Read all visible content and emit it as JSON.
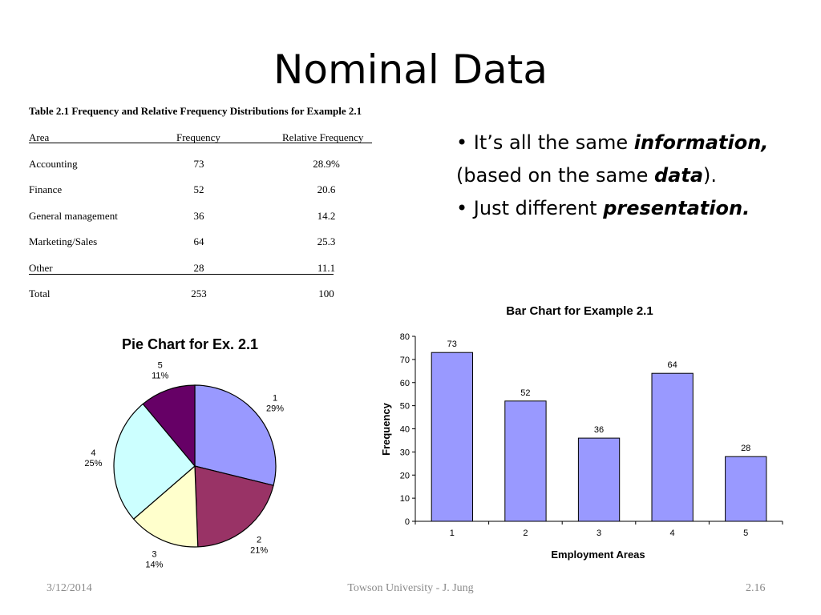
{
  "slide": {
    "title": "Nominal Data",
    "footer": {
      "date": "3/12/2014",
      "center": "Towson University - J. Jung",
      "page": "2.16"
    }
  },
  "table": {
    "caption": "Table 2.1 Frequency and Relative Frequency Distributions for Example 2.1",
    "headers": [
      "Area",
      "Frequency",
      "Relative Frequency"
    ],
    "rows": [
      [
        "Accounting",
        "73",
        "28.9%"
      ],
      [
        "Finance",
        "52",
        "20.6"
      ],
      [
        "General management",
        "36",
        "14.2"
      ],
      [
        "Marketing/Sales",
        "64",
        "25.3"
      ],
      [
        "Other",
        "28",
        "11.1"
      ],
      [
        "Total",
        "253",
        "100"
      ]
    ]
  },
  "bullets": [
    {
      "marker": "•",
      "text1": "It’s all the same ",
      "emph": "information,",
      "text2": ""
    },
    {
      "marker": "",
      "text1": "(based on the same ",
      "emph": "data",
      "text2": ")."
    },
    {
      "marker": "•",
      "text1": "Just different ",
      "emph": "presentation.",
      "text2": ""
    }
  ],
  "chart_data": [
    {
      "type": "pie",
      "title": "Pie Chart for Ex. 2.1",
      "slices": [
        {
          "label": "1",
          "value": 73,
          "pct": "29%",
          "color": "#9999ff"
        },
        {
          "label": "2",
          "value": 52,
          "pct": "21%",
          "color": "#993366"
        },
        {
          "label": "3",
          "value": 36,
          "pct": "14%",
          "color": "#ffffcc"
        },
        {
          "label": "4",
          "value": 64,
          "pct": "25%",
          "color": "#ccffff"
        },
        {
          "label": "5",
          "value": 28,
          "pct": "11%",
          "color": "#660066"
        }
      ]
    },
    {
      "type": "bar",
      "title": "Bar Chart for Example 2.1",
      "categories": [
        "1",
        "2",
        "3",
        "4",
        "5"
      ],
      "values": [
        73,
        52,
        36,
        64,
        28
      ],
      "data_labels": [
        "73",
        "52",
        "36",
        "64",
        "28"
      ],
      "xlabel": "Employment Areas",
      "ylabel": "Frequency",
      "ylim": [
        0,
        80
      ],
      "yticks": [
        "0",
        "10",
        "20",
        "30",
        "40",
        "50",
        "60",
        "70",
        "80"
      ],
      "bar_color": "#9999ff",
      "grid": false
    }
  ]
}
